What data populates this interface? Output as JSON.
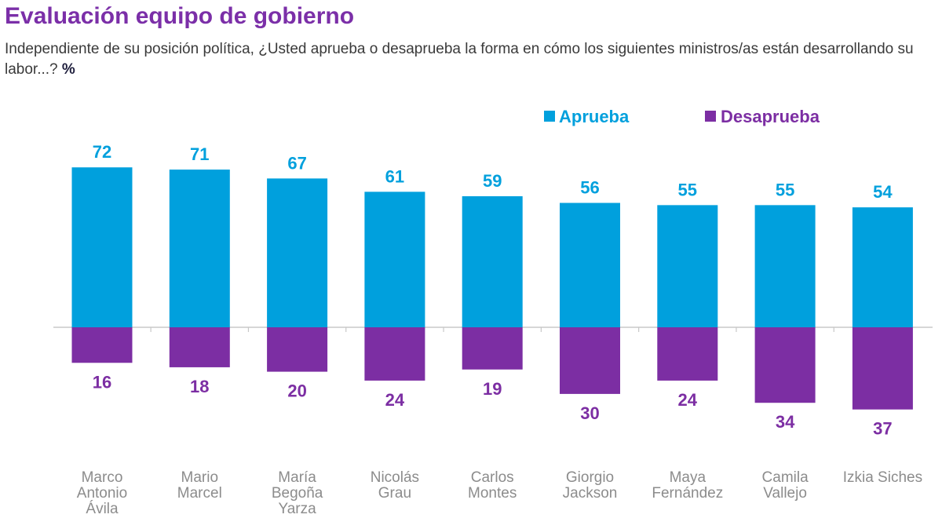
{
  "title": "Evaluación equipo de gobierno",
  "subtitle": "Independiente de su posición política, ¿Usted aprueba o desaprueba la forma en cómo los siguientes ministros/as están desarrollando su labor...?",
  "unit": "%",
  "colors": {
    "aprueba": "#00a0dd",
    "desaprueba": "#7c2ea3",
    "title": "#7b2fa8",
    "category_label": "#8c8c8c"
  },
  "chart_data": {
    "type": "bar",
    "orientation": "diverging",
    "categories": [
      "Marco\nAntonio\nÁvila",
      "Mario\nMarcel",
      "María\nBegoña\nYarza",
      "Nicolás\nGrau",
      "Carlos\nMontes",
      "Giorgio\nJackson",
      "Maya\nFernández",
      "Camila\nVallejo",
      "Izkia Siches"
    ],
    "series": [
      {
        "name": "Aprueba",
        "direction": "up",
        "values": [
          72,
          71,
          67,
          61,
          59,
          56,
          55,
          55,
          54
        ]
      },
      {
        "name": "Desaprueba",
        "direction": "down",
        "values": [
          16,
          18,
          20,
          24,
          19,
          30,
          24,
          34,
          37
        ]
      }
    ],
    "legend": {
      "position": "top-right",
      "items": [
        "Aprueba",
        "Desaprueba"
      ]
    },
    "ylim": [
      -37,
      72
    ],
    "grid": false
  }
}
